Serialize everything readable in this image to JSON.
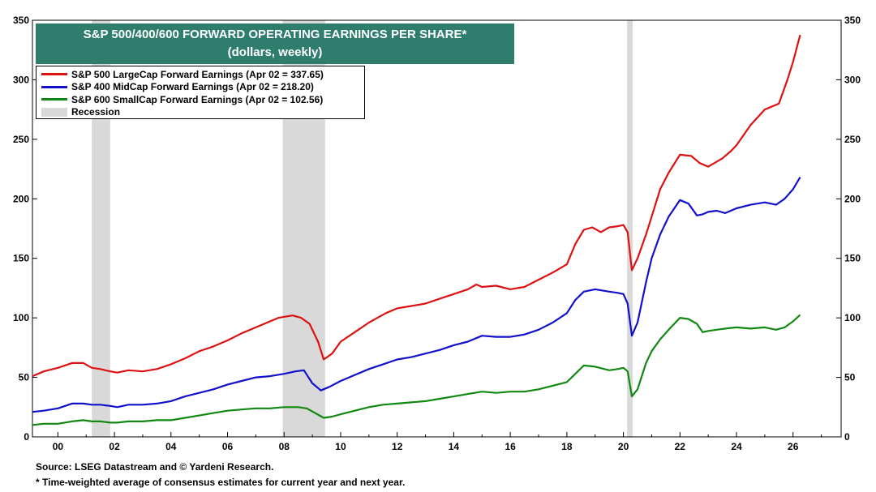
{
  "title": {
    "line1": "S&P 500/400/600 FORWARD OPERATING EARNINGS PER SHARE*",
    "line2": "(dollars, weekly)"
  },
  "legend": [
    {
      "label": "S&P 500 LargeCap Forward Earnings (Apr 02 = 337.65)",
      "color": "#dd1111"
    },
    {
      "label": "S&P 400 MidCap Forward Earnings (Apr 02 = 218.20)",
      "color": "#1111cc"
    },
    {
      "label": "S&P 600 SmallCap Forward Earnings (Apr 02 = 102.56)",
      "color": "#118811"
    },
    {
      "label": "Recession",
      "color": "#d9d9d9"
    }
  ],
  "footer": {
    "source": "Source: LSEG Datastream and © Yardeni Research.",
    "note": "* Time-weighted average of consensus estimates for current year and next year."
  },
  "chart_data": {
    "type": "line",
    "title": "S&P 500/400/600 FORWARD OPERATING EARNINGS PER SHARE*",
    "subtitle": "(dollars, weekly)",
    "xlabel": "",
    "ylabel": "",
    "xlim": [
      1999.1,
      2027.7
    ],
    "ylim": [
      0,
      350
    ],
    "grid": false,
    "legend_position": "top-left",
    "x_ticks": [
      2000,
      2002,
      2004,
      2006,
      2008,
      2010,
      2012,
      2014,
      2016,
      2018,
      2020,
      2022,
      2024,
      2026
    ],
    "x_tick_labels": [
      "00",
      "02",
      "04",
      "06",
      "08",
      "10",
      "12",
      "14",
      "16",
      "18",
      "20",
      "22",
      "24",
      "26"
    ],
    "y_ticks": [
      0,
      50,
      100,
      150,
      200,
      250,
      300,
      350
    ],
    "y_tick_labels": [
      "0",
      "50",
      "100",
      "150",
      "200",
      "250",
      "300",
      "350"
    ],
    "recessions": [
      [
        2001.2,
        2001.85
      ],
      [
        2007.95,
        2009.45
      ],
      [
        2020.13,
        2020.33
      ]
    ],
    "series": [
      {
        "name": "S&P 500 LargeCap Forward Earnings (Apr 02 = 337.65)",
        "color": "#dd1111",
        "x": [
          1999.1,
          1999.5,
          2000.0,
          2000.5,
          2000.9,
          2001.2,
          2001.5,
          2001.85,
          2002.1,
          2002.5,
          2003.0,
          2003.5,
          2004.0,
          2004.5,
          2005.0,
          2005.5,
          2006.0,
          2006.5,
          2007.0,
          2007.5,
          2007.8,
          2008.3,
          2008.6,
          2008.9,
          2009.2,
          2009.4,
          2009.7,
          2010.0,
          2010.5,
          2011.0,
          2011.3,
          2011.6,
          2012.0,
          2012.5,
          2013.0,
          2013.5,
          2014.0,
          2014.5,
          2014.8,
          2015.0,
          2015.5,
          2016.0,
          2016.5,
          2017.0,
          2017.5,
          2018.0,
          2018.3,
          2018.6,
          2018.9,
          2019.2,
          2019.5,
          2019.8,
          2020.0,
          2020.15,
          2020.3,
          2020.5,
          2020.8,
          2021.0,
          2021.3,
          2021.6,
          2022.0,
          2022.4,
          2022.7,
          2023.0,
          2023.5,
          2023.8,
          2024.0,
          2024.5,
          2025.0,
          2025.5,
          2025.8,
          2026.0,
          2026.25
        ],
        "values": [
          51,
          55,
          58,
          62,
          62,
          58,
          57,
          55,
          54,
          56,
          55,
          57,
          61,
          66,
          72,
          76,
          81,
          87,
          92,
          97,
          100,
          102,
          100,
          95,
          80,
          65,
          70,
          80,
          88,
          96,
          100,
          104,
          108,
          110,
          112,
          116,
          120,
          124,
          128,
          126,
          127,
          124,
          126,
          132,
          138,
          145,
          162,
          174,
          176,
          172,
          176,
          177,
          178,
          172,
          140,
          150,
          170,
          185,
          208,
          222,
          237,
          236,
          230,
          227,
          234,
          240,
          245,
          262,
          275,
          280,
          300,
          315,
          337.65
        ]
      },
      {
        "name": "S&P 400 MidCap Forward Earnings (Apr 02 = 218.20)",
        "color": "#1111cc",
        "x": [
          1999.1,
          1999.5,
          2000.0,
          2000.5,
          2000.9,
          2001.2,
          2001.5,
          2001.85,
          2002.1,
          2002.5,
          2003.0,
          2003.5,
          2004.0,
          2004.5,
          2005.0,
          2005.5,
          2006.0,
          2006.5,
          2007.0,
          2007.5,
          2008.0,
          2008.4,
          2008.7,
          2009.0,
          2009.3,
          2009.6,
          2010.0,
          2010.5,
          2011.0,
          2011.5,
          2012.0,
          2012.5,
          2013.0,
          2013.5,
          2014.0,
          2014.5,
          2015.0,
          2015.5,
          2016.0,
          2016.5,
          2017.0,
          2017.5,
          2018.0,
          2018.3,
          2018.6,
          2019.0,
          2019.5,
          2019.8,
          2020.0,
          2020.15,
          2020.3,
          2020.5,
          2020.8,
          2021.0,
          2021.3,
          2021.6,
          2022.0,
          2022.3,
          2022.6,
          2022.8,
          2023.0,
          2023.3,
          2023.6,
          2024.0,
          2024.5,
          2025.0,
          2025.4,
          2025.7,
          2026.0,
          2026.25
        ],
        "values": [
          21,
          22,
          24,
          28,
          28,
          27,
          27,
          26,
          25,
          27,
          27,
          28,
          30,
          34,
          37,
          40,
          44,
          47,
          50,
          51,
          53,
          55,
          56,
          45,
          39,
          42,
          47,
          52,
          57,
          61,
          65,
          67,
          70,
          73,
          77,
          80,
          85,
          84,
          84,
          86,
          90,
          96,
          104,
          115,
          122,
          124,
          122,
          121,
          120,
          112,
          85,
          96,
          130,
          150,
          170,
          185,
          199,
          196,
          186,
          187,
          189,
          190,
          188,
          192,
          195,
          197,
          195,
          200,
          208,
          218.2
        ]
      },
      {
        "name": "S&P 600 SmallCap Forward Earnings (Apr 02 = 102.56)",
        "color": "#118811",
        "x": [
          1999.1,
          1999.5,
          2000.0,
          2000.5,
          2000.9,
          2001.2,
          2001.5,
          2001.85,
          2002.1,
          2002.5,
          2003.0,
          2003.5,
          2004.0,
          2004.5,
          2005.0,
          2005.5,
          2006.0,
          2006.5,
          2007.0,
          2007.5,
          2008.0,
          2008.5,
          2008.8,
          2009.1,
          2009.4,
          2009.7,
          2010.0,
          2010.5,
          2011.0,
          2011.5,
          2012.0,
          2012.5,
          2013.0,
          2013.5,
          2014.0,
          2014.5,
          2015.0,
          2015.5,
          2016.0,
          2016.5,
          2017.0,
          2017.5,
          2018.0,
          2018.3,
          2018.6,
          2019.0,
          2019.5,
          2019.8,
          2020.0,
          2020.15,
          2020.3,
          2020.5,
          2020.8,
          2021.0,
          2021.3,
          2021.6,
          2022.0,
          2022.3,
          2022.6,
          2022.8,
          2023.0,
          2023.3,
          2023.6,
          2024.0,
          2024.5,
          2025.0,
          2025.4,
          2025.7,
          2026.0,
          2026.25
        ],
        "values": [
          10,
          11,
          11,
          13,
          14,
          13,
          13,
          12,
          12,
          13,
          13,
          14,
          14,
          16,
          18,
          20,
          22,
          23,
          24,
          24,
          25,
          25,
          24,
          20,
          16,
          17,
          19,
          22,
          25,
          27,
          28,
          29,
          30,
          32,
          34,
          36,
          38,
          37,
          38,
          38,
          40,
          43,
          46,
          53,
          60,
          59,
          56,
          57,
          58,
          55,
          34,
          40,
          62,
          72,
          82,
          90,
          100,
          99,
          95,
          88,
          89,
          90,
          91,
          92,
          91,
          92,
          90,
          92,
          97,
          102.56
        ]
      }
    ]
  }
}
